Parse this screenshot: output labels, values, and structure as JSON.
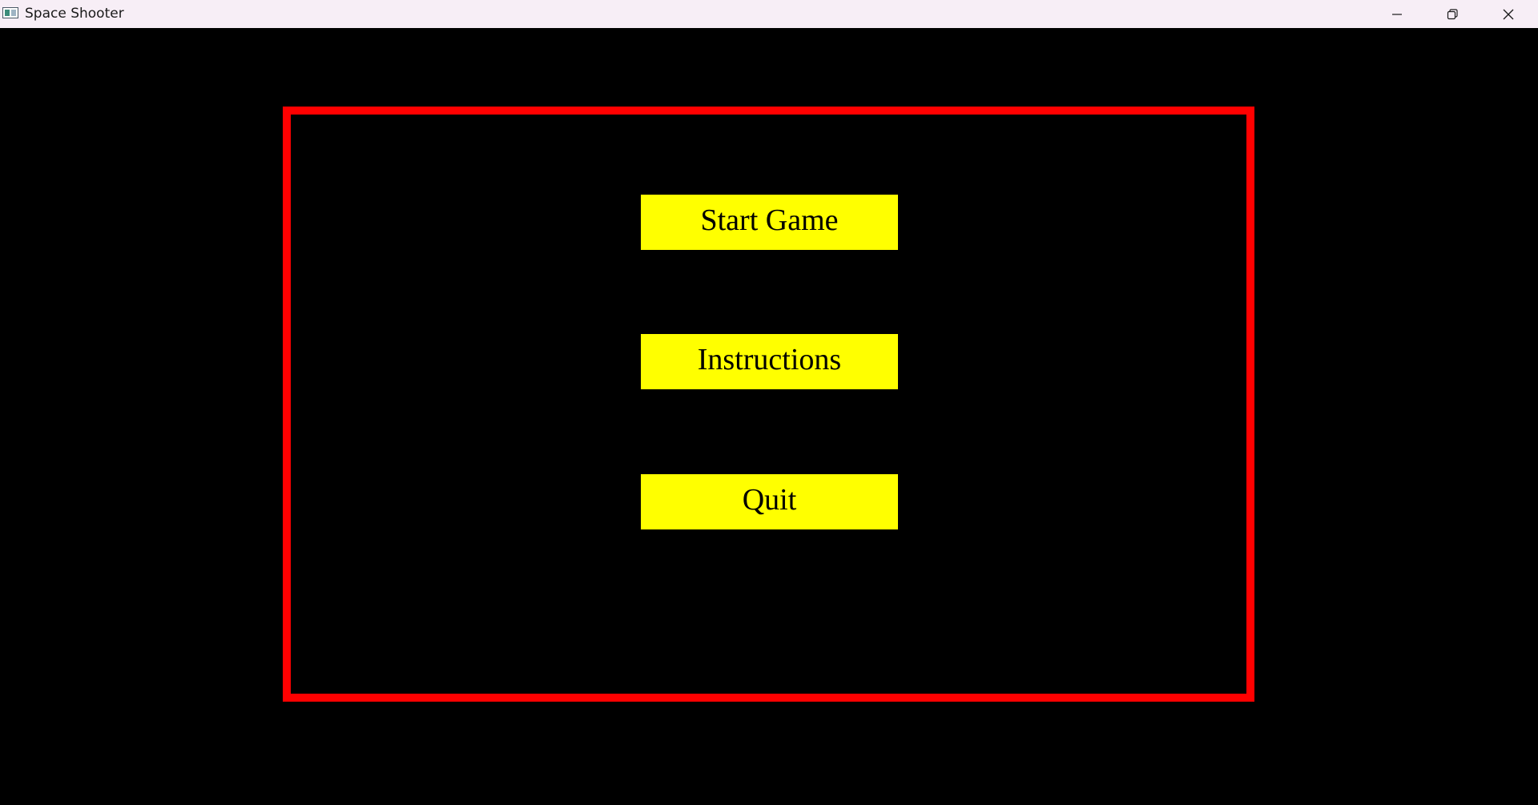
{
  "window": {
    "title": "Space Shooter",
    "icon": "app-window-icon",
    "controls": [
      {
        "name": "minimize",
        "icon": "minimize-icon"
      },
      {
        "name": "restore",
        "icon": "restore-icon"
      },
      {
        "name": "close",
        "icon": "close-icon"
      }
    ]
  },
  "colors": {
    "background": "#000000",
    "frame": "#ff0000",
    "button_fill": "#ffff00",
    "button_text": "#000000",
    "titlebar": "#f7eef6"
  },
  "menu": {
    "start_label": "Start Game",
    "instructions_label": "Instructions",
    "quit_label": "Quit"
  }
}
